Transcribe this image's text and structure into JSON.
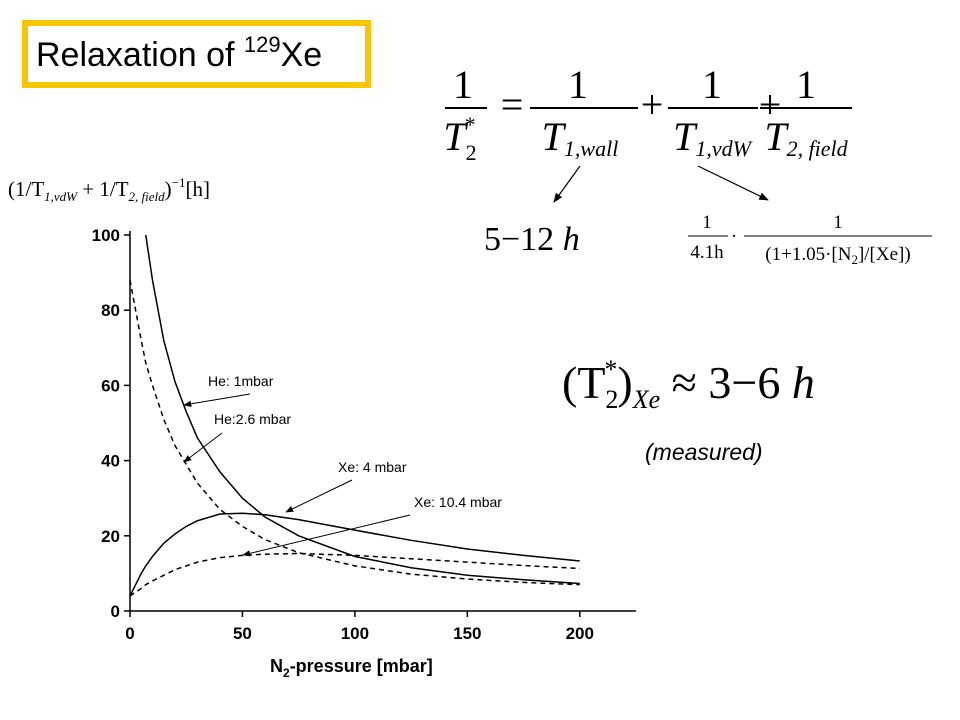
{
  "slide": {
    "title": {
      "text": "Relaxation of ",
      "sup": "129",
      "tail": "Xe"
    },
    "note": "(measured)"
  },
  "formulas": {
    "main": {
      "lhs": {
        "num": "1",
        "den": "T",
        "sub": "2",
        "sup": "*"
      },
      "eq": "=",
      "plus": "+",
      "terms": [
        {
          "num": "1",
          "den": "T",
          "sub": "1,wall"
        },
        {
          "num": "1",
          "den": "T",
          "sub": "1,vdW"
        },
        {
          "num": "1",
          "den": "T",
          "sub": "2, field"
        }
      ]
    },
    "wall": {
      "text": "5−12 ",
      "unit": "h"
    },
    "field": {
      "a_num": "1",
      "a_den": "4.1h",
      "dot": "·",
      "b_num": "1",
      "b_den": "(1+1.05·[N",
      "b_sub": "2",
      "b_tail": "]/[Xe])"
    },
    "measured": {
      "open": "(T",
      "sub": "2",
      "sup": "*",
      "close": ")",
      "xe": "Xe",
      "rest": " ≈ 3−6 ",
      "unit": "h"
    }
  },
  "chart_data": {
    "type": "line",
    "xlabel": {
      "text": "N",
      "sub": "2",
      "tail": "-pressure [mbar]"
    },
    "ylabel": {
      "open": "(1/T",
      "sub1": "1,vdW",
      "mid": " + 1/T",
      "sub2": "2, field",
      "close": ")",
      "sup": "−1",
      "unit": "[h]"
    },
    "x": [
      0,
      5,
      7,
      10,
      15,
      20,
      25,
      30,
      40,
      50,
      60,
      75,
      100,
      125,
      150,
      175,
      200
    ],
    "series": [
      {
        "name": "He: 1mbar",
        "color": "#000000",
        "linestyle": "solid",
        "values": [
          null,
          null,
          100,
          88,
          72,
          61,
          53,
          46,
          37,
          30,
          25,
          20,
          14.5,
          11.5,
          9.5,
          8.3,
          7.3
        ]
      },
      {
        "name": "He:2.6 mbar",
        "color": "#000000",
        "linestyle": "dashed",
        "values": [
          88,
          72,
          66,
          60,
          51,
          44,
          39,
          34,
          27,
          22.5,
          19,
          15.5,
          12,
          9.8,
          8.5,
          7.6,
          7
        ]
      },
      {
        "name": "Xe: 4 mbar",
        "color": "#000000",
        "linestyle": "solid",
        "values": [
          4,
          10,
          12,
          14.5,
          18,
          20.5,
          22.5,
          24,
          25.8,
          26,
          25.6,
          24.3,
          21.5,
          18.8,
          16.5,
          14.8,
          13.3
        ]
      },
      {
        "name": "Xe: 10.4 mbar",
        "color": "#000000",
        "linestyle": "dashed",
        "values": [
          4,
          6,
          7,
          8,
          9.5,
          11,
          12,
          13,
          14.2,
          14.8,
          15.1,
          15.3,
          14.8,
          13.9,
          13,
          12.1,
          11.3
        ]
      }
    ],
    "xlim": [
      0,
      225
    ],
    "xticks": [
      0,
      50,
      100,
      150,
      200
    ],
    "ylim": [
      0,
      100
    ],
    "yticks": [
      0,
      20,
      40,
      60,
      80,
      100
    ],
    "grid": false
  }
}
